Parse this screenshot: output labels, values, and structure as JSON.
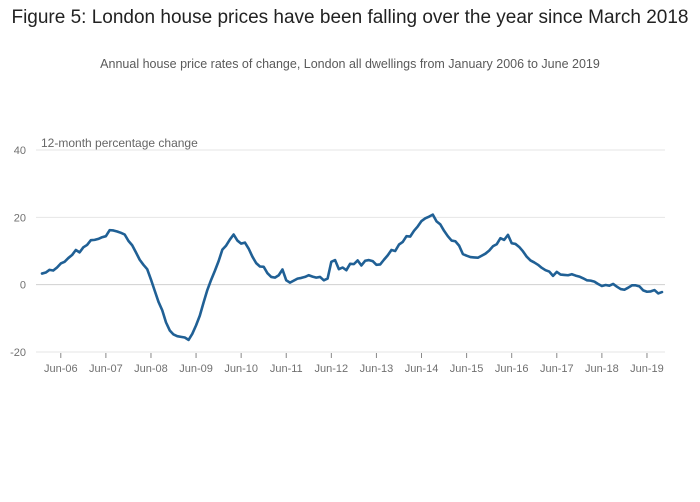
{
  "title": "Figure 5: London house prices have been falling over the year since March 2018",
  "subtitle": "Annual house price rates of change, London all dwellings from January 2006 to June 2019",
  "chart_data": {
    "type": "line",
    "title": "Figure 5: London house prices have been falling over the year since March 2018",
    "subtitle": "Annual house price rates of change, London all dwellings from January 2006 to June 2019",
    "ylabel": "12-month percentage change",
    "xlabel": "",
    "ylim": [
      -20,
      40
    ],
    "yticks": [
      -20,
      0,
      20,
      40
    ],
    "xticks": [
      "Jun-06",
      "Jun-07",
      "Jun-08",
      "Jun-09",
      "Jun-10",
      "Jun-11",
      "Jun-12",
      "Jun-13",
      "Jun-14",
      "Jun-15",
      "Jun-16",
      "Jun-17",
      "Jun-18",
      "Jun-19"
    ],
    "grid": "horizontal",
    "line_color": "#206095",
    "series": [
      {
        "name": "",
        "start": "Jan-06",
        "frequency": "monthly",
        "values": [
          3.3,
          3.6,
          4.4,
          4.2,
          5.1,
          6.3,
          6.8,
          7.9,
          8.8,
          10.3,
          9.6,
          11.1,
          11.8,
          13.2,
          13.3,
          13.6,
          14.1,
          14.4,
          16.2,
          16.1,
          15.8,
          15.4,
          14.9,
          13.0,
          11.7,
          9.6,
          7.4,
          5.9,
          4.6,
          1.5,
          -1.8,
          -5.1,
          -7.6,
          -11.2,
          -13.6,
          -14.8,
          -15.3,
          -15.5,
          -15.7,
          -16.4,
          -14.6,
          -12.1,
          -9.2,
          -5.3,
          -1.6,
          1.4,
          4.1,
          7.0,
          10.4,
          11.6,
          13.4,
          14.9,
          13.1,
          12.2,
          12.5,
          10.7,
          8.3,
          6.4,
          5.4,
          5.3,
          3.4,
          2.3,
          2.1,
          2.8,
          4.5,
          1.3,
          0.6,
          1.2,
          1.8,
          2.0,
          2.3,
          2.8,
          2.4,
          2.1,
          2.3,
          1.3,
          1.8,
          6.8,
          7.3,
          4.6,
          5.1,
          4.3,
          6.2,
          6.1,
          7.2,
          5.7,
          7.1,
          7.3,
          7.0,
          5.9,
          6.0,
          7.4,
          8.7,
          10.3,
          10.0,
          11.9,
          12.7,
          14.4,
          14.3,
          16.0,
          17.3,
          18.9,
          19.7,
          20.2,
          20.8,
          18.8,
          17.9,
          16.0,
          14.4,
          13.1,
          12.9,
          11.6,
          9.1,
          8.6,
          8.2,
          8.1,
          8.0,
          8.6,
          9.2,
          10.1,
          11.4,
          12.0,
          13.8,
          13.3,
          14.8,
          12.3,
          12.1,
          11.2,
          9.9,
          8.3,
          7.2,
          6.6,
          5.9,
          5.0,
          4.3,
          3.9,
          2.6,
          3.8,
          3.0,
          2.9,
          2.8,
          3.1,
          2.7,
          2.4,
          1.9,
          1.3,
          1.2,
          0.9,
          0.2,
          -0.4,
          -0.1,
          -0.3,
          0.2,
          -0.6,
          -1.3,
          -1.5,
          -0.9,
          -0.2,
          -0.2,
          -0.5,
          -1.7,
          -2.1,
          -2.0,
          -1.6,
          -2.6,
          -2.2
        ]
      }
    ]
  }
}
